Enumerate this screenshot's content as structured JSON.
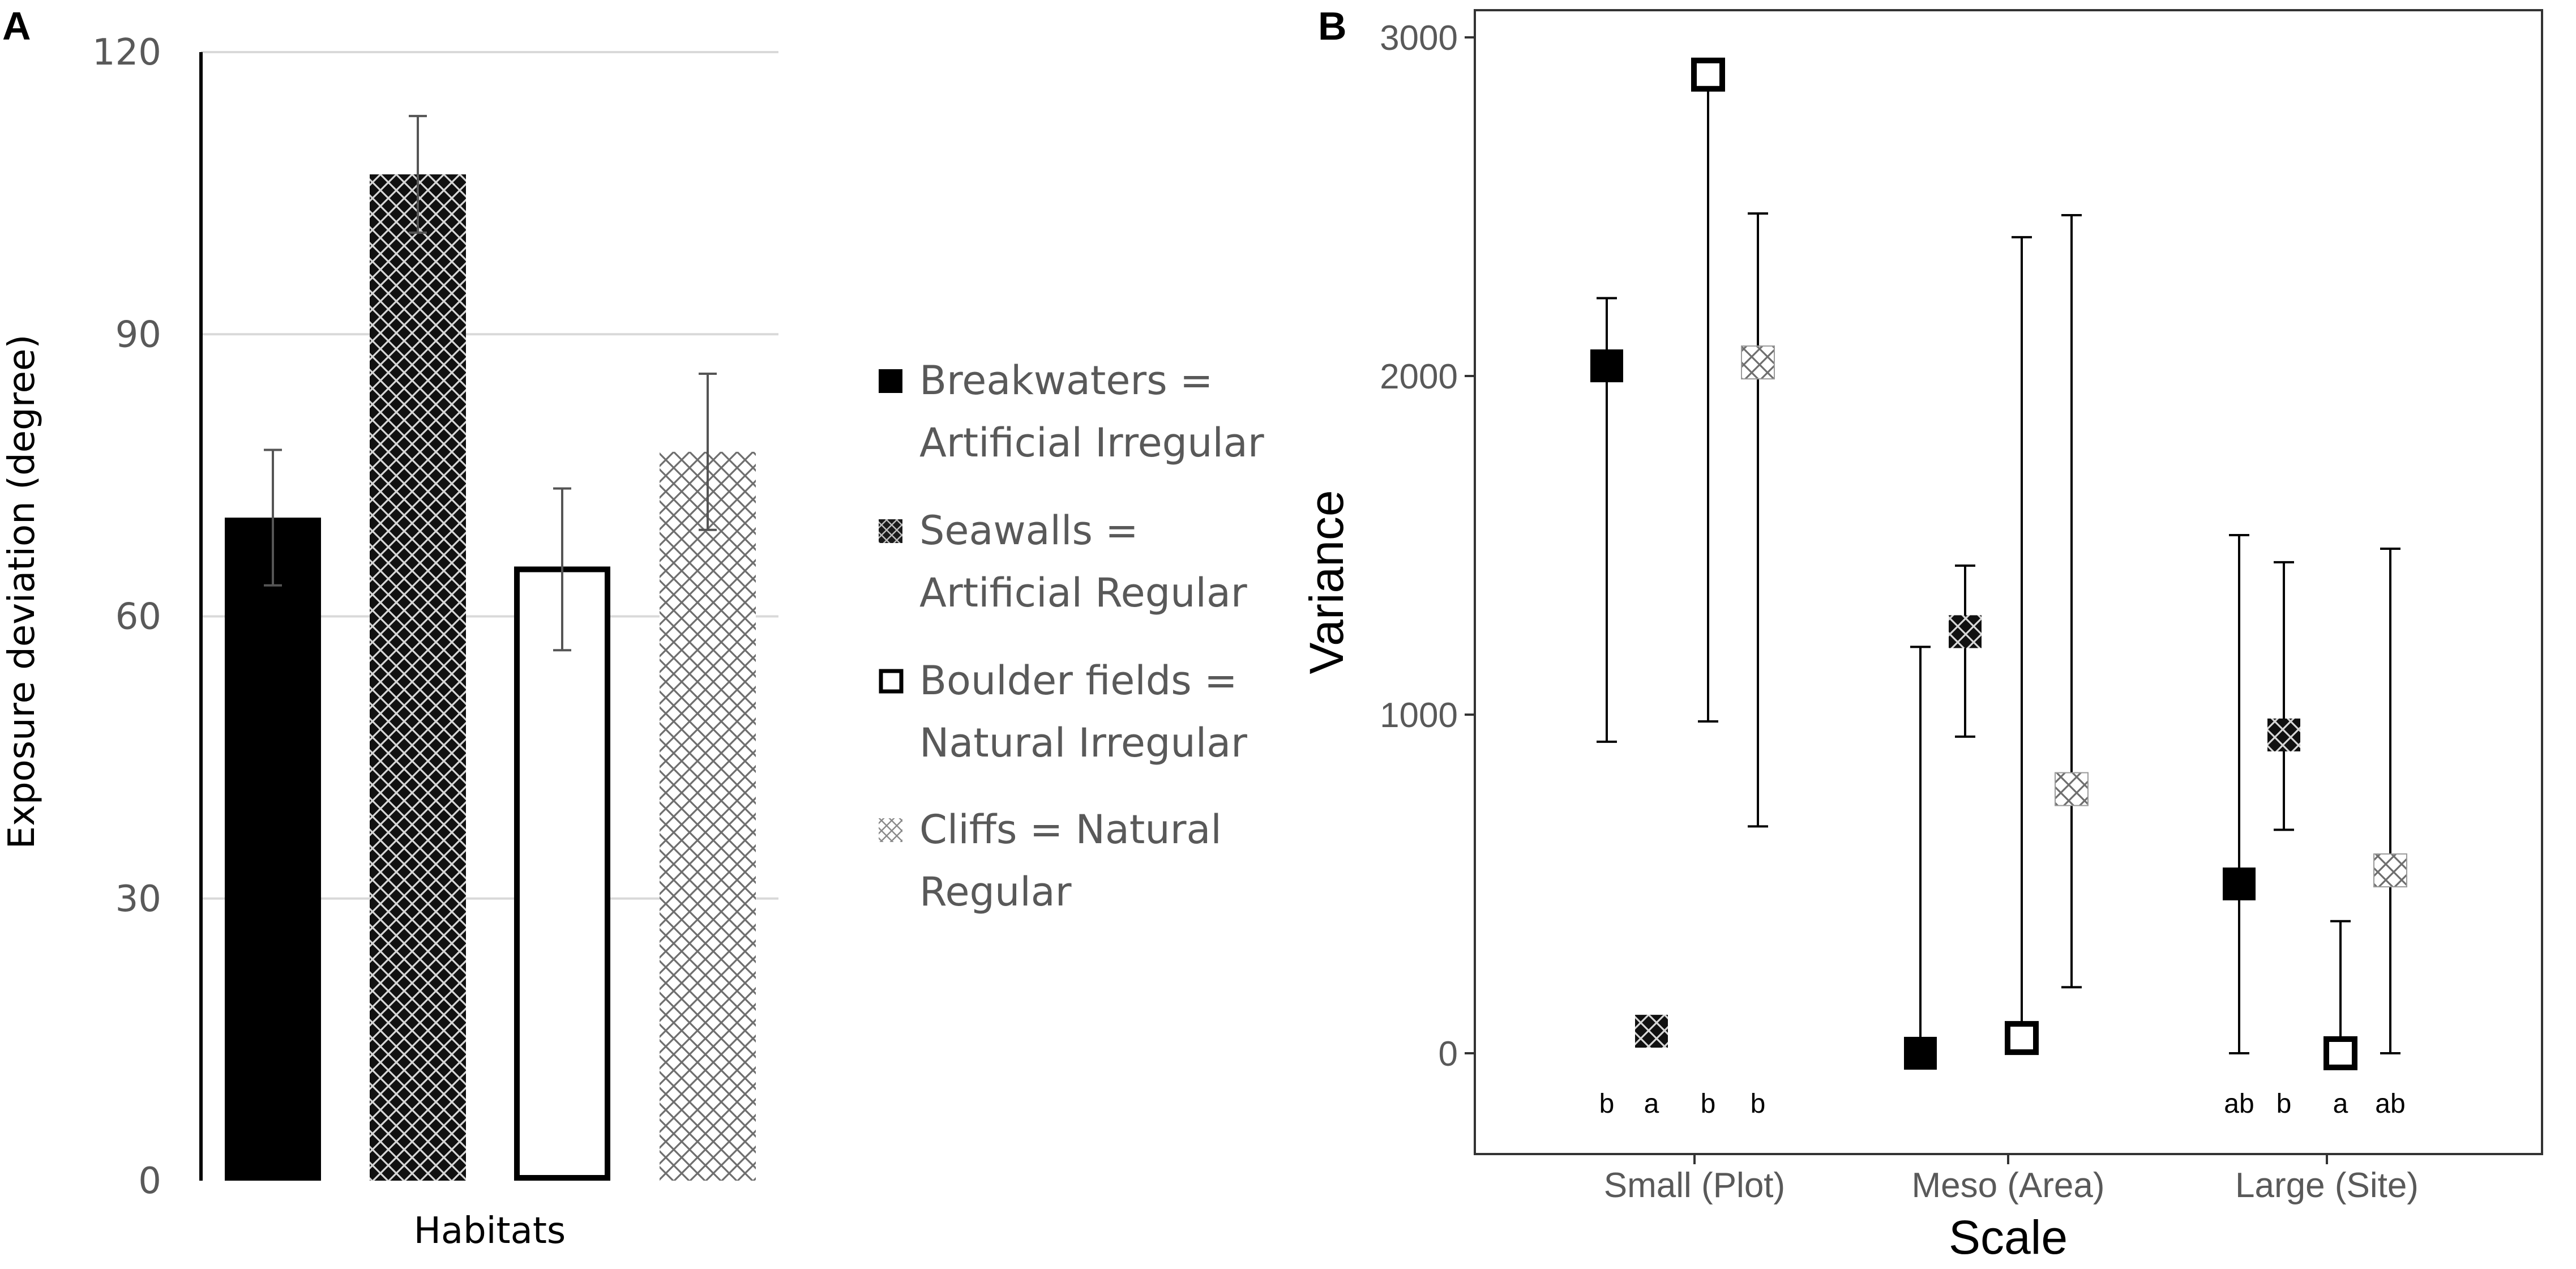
{
  "colors": {
    "black": "#000000",
    "dark_hatch_bg": "#111111",
    "light_hatch": "#6e6e6e",
    "grid": "#d9d9d9",
    "tick_text": "#595959",
    "error_bar": "#555555"
  },
  "legend": {
    "items": [
      {
        "line1": "Breakwaters =",
        "line2": "Artificial Irregular",
        "swatch": "solid-black"
      },
      {
        "line1": "Seawalls =",
        "line2": "Artificial Regular",
        "swatch": "dark-crosshatch"
      },
      {
        "line1": "Boulder fields =",
        "line2": "Natural Irregular",
        "swatch": "open-square"
      },
      {
        "line1": "Cliffs = Natural",
        "line2": "Regular",
        "swatch": "light-crosshatch"
      }
    ]
  },
  "chart_data": [
    {
      "panel_label": "A",
      "type": "bar",
      "xlabel": "Habitats",
      "ylabel": "Exposure deviation (degree)",
      "ylim": [
        0,
        120
      ],
      "yticks": [
        0,
        30,
        60,
        90,
        120
      ],
      "grid": true,
      "categories": [
        "Breakwaters",
        "Seawalls",
        "Boulder fields",
        "Cliffs"
      ],
      "values": [
        70.5,
        107,
        65,
        77.5
      ],
      "errors": [
        7.2,
        6.2,
        8.6,
        8.3
      ],
      "fills": [
        "solid-black",
        "dark-crosshatch",
        "open-square",
        "light-crosshatch"
      ]
    },
    {
      "panel_label": "B",
      "type": "scatter",
      "xlabel": "Scale",
      "ylabel": "Variance",
      "ylim": [
        -300,
        3000
      ],
      "yticks": [
        0,
        1000,
        2000,
        3000
      ],
      "categories": [
        "Small (Plot)",
        "Meso (Area)",
        "Large (Site)"
      ],
      "series": [
        {
          "name": "Breakwaters = Artificial Irregular",
          "marker": "solid-black",
          "values": [
            2030,
            0,
            500
          ],
          "lower": [
            920,
            0,
            0
          ],
          "upper": [
            2230,
            1200,
            1530
          ]
        },
        {
          "name": "Seawalls = Artificial Regular",
          "marker": "dark-crosshatch",
          "values": [
            65,
            1245,
            940
          ],
          "lower": [
            null,
            935,
            660
          ],
          "upper": [
            null,
            1440,
            1450
          ]
        },
        {
          "name": "Boulder fields = Natural Irregular",
          "marker": "open-square",
          "values": [
            2890,
            45,
            0
          ],
          "lower": [
            980,
            0,
            0
          ],
          "upper": [
            2890,
            2410,
            390
          ]
        },
        {
          "name": "Cliffs = Natural Regular",
          "marker": "light-crosshatch",
          "values": [
            2040,
            780,
            540
          ],
          "lower": [
            670,
            195,
            0
          ],
          "upper": [
            2480,
            2475,
            1490
          ]
        }
      ],
      "letters": [
        [
          "b",
          "a",
          "b",
          "b"
        ],
        [
          "",
          "",
          "",
          ""
        ],
        [
          "ab",
          "b",
          "a",
          "ab"
        ]
      ]
    }
  ]
}
